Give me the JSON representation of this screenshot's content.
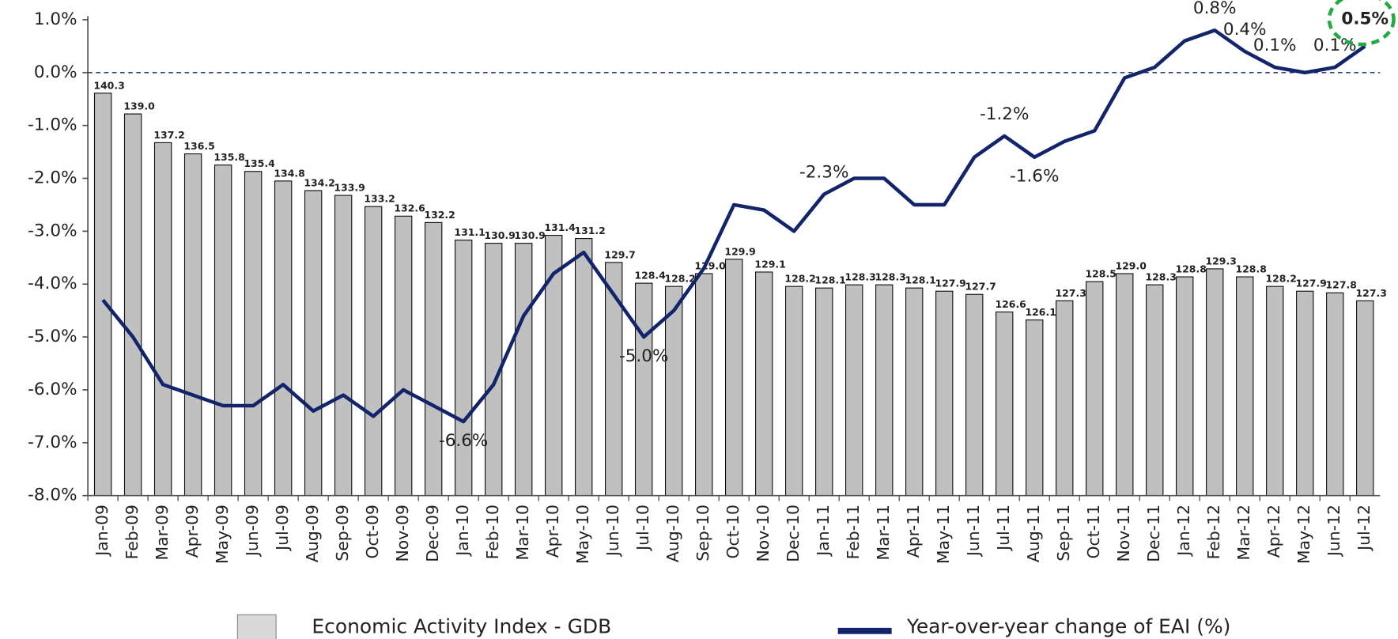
{
  "chart_data": {
    "type": "bar",
    "categories": [
      "Jan-09",
      "Feb-09",
      "Mar-09",
      "Apr-09",
      "May-09",
      "Jun-09",
      "Jul-09",
      "Aug-09",
      "Sep-09",
      "Oct-09",
      "Nov-09",
      "Dec-09",
      "Jan-10",
      "Feb-10",
      "Mar-10",
      "Apr-10",
      "May-10",
      "Jun-10",
      "Jul-10",
      "Aug-10",
      "Sep-10",
      "Oct-10",
      "Nov-10",
      "Dec-10",
      "Jan-11",
      "Feb-11",
      "Mar-11",
      "Apr-11",
      "May-11",
      "Jun-11",
      "Jul-11",
      "Aug-11",
      "Sep-11",
      "Oct-11",
      "Nov-11",
      "Dec-11",
      "Jan-12",
      "Feb-12",
      "Mar-12",
      "Apr-12",
      "May-12",
      "Jun-12",
      "Jul-12"
    ],
    "series": [
      {
        "name": "Economic Activity Index - GDB",
        "type": "bar",
        "axis": "y2",
        "color": "#c0c0c0",
        "values": [
          140.3,
          139.0,
          137.2,
          136.5,
          135.8,
          135.4,
          134.8,
          134.2,
          133.9,
          133.2,
          132.6,
          132.2,
          131.1,
          130.9,
          130.9,
          131.4,
          131.2,
          129.7,
          128.4,
          128.2,
          129.0,
          129.9,
          129.1,
          128.2,
          128.1,
          128.3,
          128.3,
          128.1,
          127.9,
          127.7,
          126.6,
          126.1,
          127.3,
          128.5,
          129.0,
          128.3,
          128.8,
          129.3,
          128.8,
          128.2,
          127.9,
          127.8,
          127.3
        ],
        "value_labels": [
          "140.3",
          "139.0",
          "137.2",
          "136.5",
          "135.8",
          "135.4",
          "134.8",
          "134.2",
          "133.9",
          "133.2",
          "132.6",
          "132.2",
          "131.1",
          "130.9",
          "130.9",
          "131.4",
          "131.2",
          "129.7",
          "128.4",
          "128.2",
          "129.0",
          "129.9",
          "129.1",
          "128.2",
          "128.1",
          "128.3",
          "128.3",
          "128.1",
          "127.9",
          "127.7",
          "126.6",
          "126.1",
          "127.3",
          "128.5",
          "129.0",
          "128.3",
          "128.8",
          "129.3",
          "128.8",
          "128.2",
          "127.9",
          "127.8",
          "127.3"
        ]
      },
      {
        "name": "Year-over-year change of EAI (%)",
        "type": "line",
        "color": "#12256b",
        "values": [
          -4.3,
          -5.0,
          -5.9,
          -6.1,
          -6.3,
          -6.3,
          -5.9,
          -6.4,
          -6.1,
          -6.5,
          -6.0,
          -6.3,
          -6.6,
          -5.9,
          -4.6,
          -3.8,
          -3.4,
          -4.2,
          -5.0,
          -4.5,
          -3.7,
          -2.5,
          -2.6,
          -3.0,
          -2.3,
          -2.0,
          -2.0,
          -2.5,
          -2.5,
          -1.6,
          -1.2,
          -1.6,
          -1.3,
          -1.1,
          -0.1,
          0.1,
          0.6,
          0.8,
          0.4,
          0.1,
          0.0,
          0.1,
          0.5
        ],
        "value_labels": [
          null,
          null,
          null,
          null,
          null,
          null,
          null,
          null,
          null,
          null,
          null,
          null,
          "-6.6%",
          null,
          null,
          null,
          null,
          null,
          "-5.0%",
          null,
          null,
          null,
          null,
          null,
          "-2.3%",
          null,
          null,
          null,
          null,
          null,
          "-1.2%",
          "-1.6%",
          null,
          null,
          null,
          null,
          null,
          "0.8%",
          "0.4%",
          "0.1%",
          null,
          "0.1%",
          "0.5%"
        ]
      }
    ],
    "ylim": [
      -8,
      1
    ],
    "yticks": [
      {
        "value": 1,
        "label": "1.0%"
      },
      {
        "value": 0,
        "label": "0.0%"
      },
      {
        "value": -1,
        "label": "-1.0%"
      },
      {
        "value": -2,
        "label": "-2.0%"
      },
      {
        "value": -3,
        "label": "-3.0%"
      },
      {
        "value": -4,
        "label": "-4.0%"
      },
      {
        "value": -5,
        "label": "-5.0%"
      },
      {
        "value": -6,
        "label": "-6.0%"
      },
      {
        "value": -7,
        "label": "-7.0%"
      },
      {
        "value": -8,
        "label": "-8.0%"
      }
    ],
    "y2lim": [
      115.1,
      144.9
    ],
    "zero_line": true,
    "legend": "bottom"
  }
}
